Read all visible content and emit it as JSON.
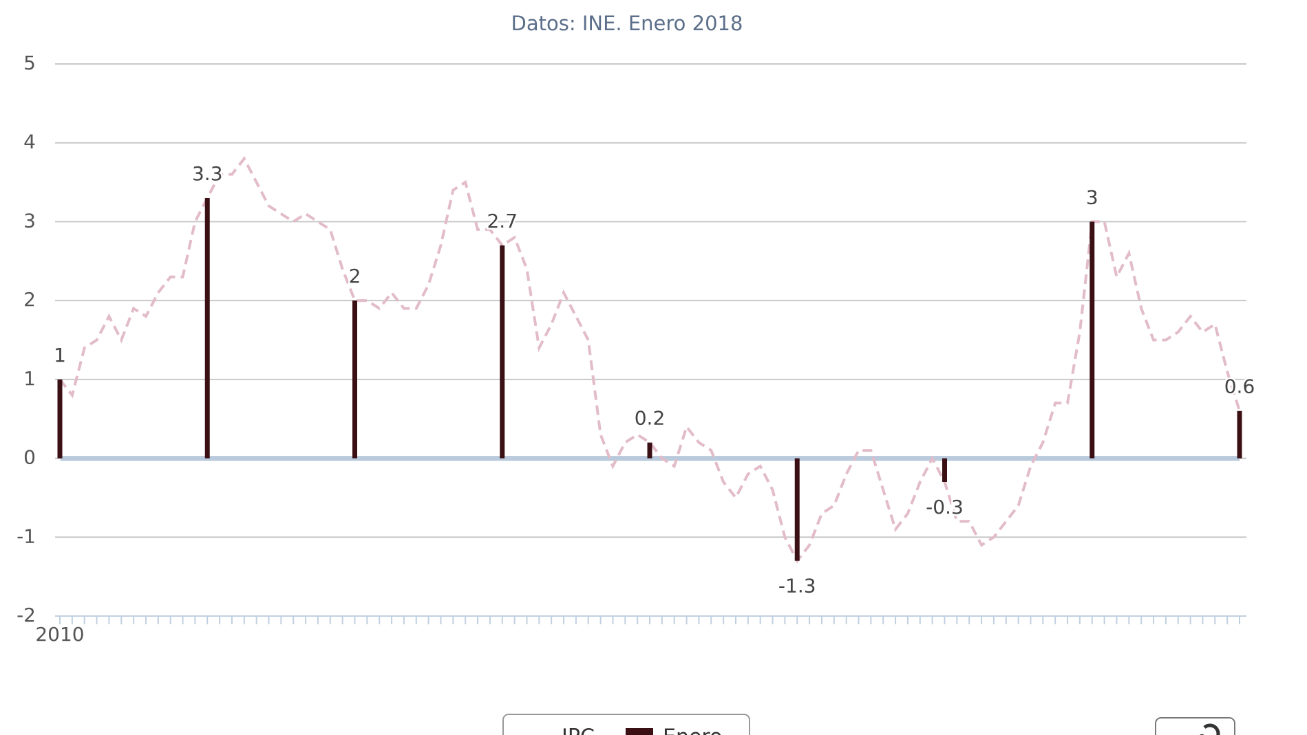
{
  "chart_data": {
    "type": "bar-line",
    "subtitle": "Datos: INE. Enero 2018",
    "categories": [
      "2010",
      null,
      null,
      null,
      null,
      null,
      null,
      null,
      null,
      null,
      null,
      null,
      null,
      null,
      null,
      null,
      null,
      null,
      null,
      null,
      null,
      null,
      null,
      null,
      null,
      null,
      null,
      null,
      null,
      null,
      null,
      null,
      null,
      null,
      null,
      null,
      null,
      null,
      null,
      null,
      null,
      null,
      null,
      null,
      null,
      null,
      null,
      null,
      null,
      null,
      null,
      null,
      null,
      null,
      null,
      null,
      null,
      null,
      null,
      null,
      null,
      null,
      null,
      null,
      null,
      null,
      null,
      null,
      null,
      null,
      null,
      null,
      null,
      null,
      null,
      null,
      null,
      null,
      null,
      null,
      null,
      null,
      null,
      null,
      null,
      null,
      null,
      null,
      null,
      null,
      null,
      null,
      null,
      null,
      null,
      null,
      null
    ],
    "series": [
      {
        "name": "IPC",
        "type": "line",
        "color": "#e2bcc8",
        "dashed": true,
        "values": [
          1.0,
          0.8,
          1.4,
          1.5,
          1.8,
          1.5,
          1.9,
          1.8,
          2.1,
          2.3,
          2.3,
          3.0,
          3.3,
          3.6,
          3.6,
          3.8,
          3.5,
          3.2,
          3.1,
          3.0,
          3.1,
          3.0,
          2.9,
          2.4,
          2.0,
          2.0,
          1.9,
          2.1,
          1.9,
          1.9,
          2.2,
          2.7,
          3.4,
          3.5,
          2.9,
          2.9,
          2.7,
          2.8,
          2.4,
          1.4,
          1.7,
          2.1,
          1.8,
          1.5,
          0.3,
          -0.1,
          0.2,
          0.3,
          0.2,
          0.0,
          -0.1,
          0.4,
          0.2,
          0.1,
          -0.3,
          -0.5,
          -0.2,
          -0.1,
          -0.4,
          -1.0,
          -1.3,
          -1.1,
          -0.7,
          -0.6,
          -0.2,
          0.1,
          0.1,
          -0.4,
          -0.9,
          -0.7,
          -0.3,
          0.0,
          -0.3,
          -0.8,
          -0.8,
          -1.1,
          -1.0,
          -0.8,
          -0.6,
          -0.1,
          0.2,
          0.7,
          0.7,
          1.6,
          3.0,
          3.0,
          2.3,
          2.6,
          1.9,
          1.5,
          1.5,
          1.6,
          1.8,
          1.6,
          1.7,
          1.1,
          0.6
        ]
      },
      {
        "name": "Enero",
        "type": "bar",
        "color": "#3b1015",
        "values": [
          1,
          null,
          null,
          null,
          null,
          null,
          null,
          null,
          null,
          null,
          null,
          null,
          3.3,
          null,
          null,
          null,
          null,
          null,
          null,
          null,
          null,
          null,
          null,
          null,
          2,
          null,
          null,
          null,
          null,
          null,
          null,
          null,
          null,
          null,
          null,
          null,
          2.7,
          null,
          null,
          null,
          null,
          null,
          null,
          null,
          null,
          null,
          null,
          null,
          0.2,
          null,
          null,
          null,
          null,
          null,
          null,
          null,
          null,
          null,
          null,
          null,
          -1.3,
          null,
          null,
          null,
          null,
          null,
          null,
          null,
          null,
          null,
          null,
          null,
          -0.3,
          null,
          null,
          null,
          null,
          null,
          null,
          null,
          null,
          null,
          null,
          null,
          3,
          null,
          null,
          null,
          null,
          null,
          null,
          null,
          null,
          null,
          null,
          null,
          0.6
        ]
      }
    ],
    "ylim": [
      -2,
      5
    ],
    "yticks": [
      -2,
      -1,
      0,
      1,
      2,
      3,
      4,
      5
    ],
    "grid": true,
    "legend": "bottom"
  }
}
